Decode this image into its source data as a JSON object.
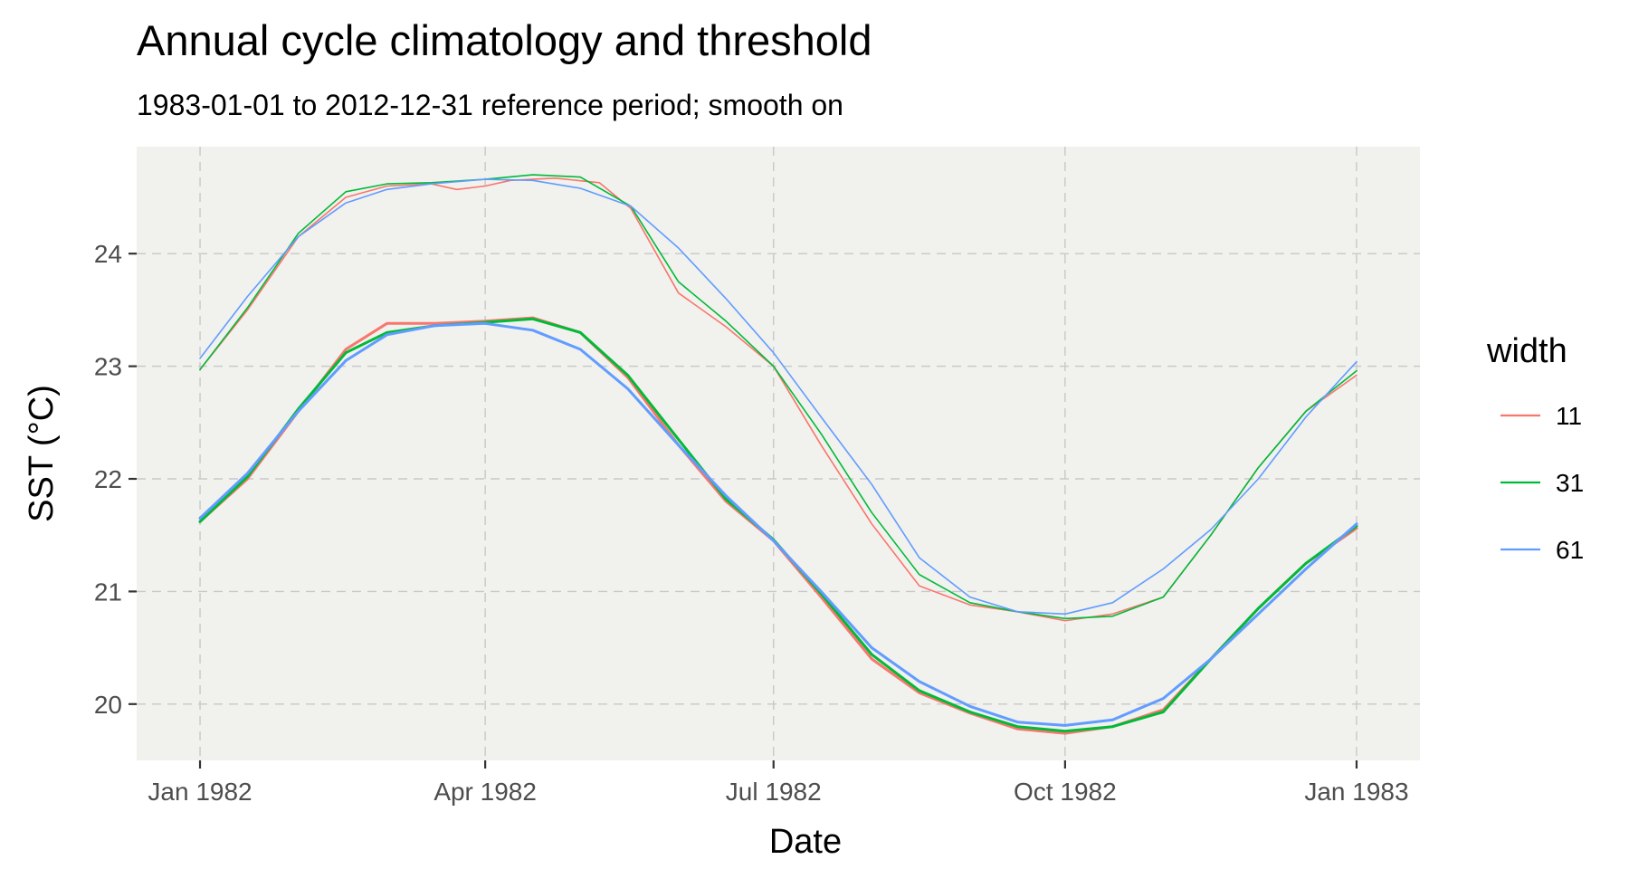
{
  "chart_data": {
    "type": "line",
    "title": "Annual cycle climatology and threshold",
    "subtitle": "1983-01-01 to 2012-12-31 reference period; smooth on",
    "xlabel": "Date",
    "ylabel": "SST (°C)",
    "legend": {
      "title": "width",
      "placement": "right"
    },
    "xlim": [
      "1981-12-12",
      "1983-01-21"
    ],
    "ylim": [
      19.5,
      24.95
    ],
    "x_ticks": [
      {
        "date": "1982-01-01",
        "label": "Jan 1982"
      },
      {
        "date": "1982-04-01",
        "label": "Apr 1982"
      },
      {
        "date": "1982-07-01",
        "label": "Jul 1982"
      },
      {
        "date": "1982-10-01",
        "label": "Oct 1982"
      },
      {
        "date": "1983-01-01",
        "label": "Jan 1983"
      }
    ],
    "y_ticks": [
      20,
      21,
      22,
      23,
      24
    ],
    "grid": true,
    "colors": {
      "11": "#F8766D",
      "31": "#00BA38",
      "61": "#619CFF",
      "panel": "#f1f1ee"
    },
    "series": [
      {
        "name": "11",
        "kind": "threshold",
        "color": "#F8766D",
        "x": [
          "1982-01-01",
          "1982-01-16",
          "1982-02-01",
          "1982-02-16",
          "1982-03-01",
          "1982-03-15",
          "1982-03-23",
          "1982-04-01",
          "1982-04-09",
          "1982-04-23",
          "1982-05-07",
          "1982-05-17",
          "1982-06-01",
          "1982-06-16",
          "1982-07-01",
          "1982-07-16",
          "1982-08-01",
          "1982-08-16",
          "1982-09-01",
          "1982-09-16",
          "1982-10-01",
          "1982-10-16",
          "1982-11-01",
          "1982-11-16",
          "1982-12-01",
          "1982-12-16",
          "1983-01-01"
        ],
        "values": [
          22.97,
          23.5,
          24.15,
          24.5,
          24.6,
          24.62,
          24.57,
          24.6,
          24.65,
          24.67,
          24.63,
          24.4,
          23.65,
          23.35,
          23.0,
          22.3,
          21.6,
          21.05,
          20.88,
          20.82,
          20.74,
          20.8,
          20.95,
          21.5,
          22.1,
          22.6,
          22.92
        ]
      },
      {
        "name": "31",
        "kind": "threshold",
        "color": "#00BA38",
        "x": [
          "1982-01-01",
          "1982-01-16",
          "1982-02-01",
          "1982-02-16",
          "1982-03-01",
          "1982-03-15",
          "1982-04-01",
          "1982-04-16",
          "1982-05-01",
          "1982-05-17",
          "1982-06-01",
          "1982-06-16",
          "1982-07-01",
          "1982-07-16",
          "1982-08-01",
          "1982-08-16",
          "1982-09-01",
          "1982-09-16",
          "1982-10-01",
          "1982-10-16",
          "1982-11-01",
          "1982-11-16",
          "1982-12-01",
          "1982-12-16",
          "1983-01-01"
        ],
        "values": [
          22.97,
          23.52,
          24.18,
          24.55,
          24.62,
          24.63,
          24.66,
          24.7,
          24.68,
          24.42,
          23.75,
          23.4,
          23.0,
          22.4,
          21.7,
          21.15,
          20.9,
          20.82,
          20.76,
          20.78,
          20.95,
          21.5,
          22.1,
          22.6,
          22.96
        ]
      },
      {
        "name": "61",
        "kind": "threshold",
        "color": "#619CFF",
        "x": [
          "1982-01-01",
          "1982-01-16",
          "1982-02-01",
          "1982-02-16",
          "1982-03-01",
          "1982-03-15",
          "1982-04-01",
          "1982-04-16",
          "1982-05-01",
          "1982-05-17",
          "1982-06-01",
          "1982-06-16",
          "1982-07-01",
          "1982-07-16",
          "1982-08-01",
          "1982-08-16",
          "1982-09-01",
          "1982-09-16",
          "1982-10-01",
          "1982-10-16",
          "1982-11-01",
          "1982-11-16",
          "1982-12-01",
          "1982-12-16",
          "1983-01-01"
        ],
        "values": [
          23.07,
          23.62,
          24.15,
          24.45,
          24.57,
          24.62,
          24.66,
          24.65,
          24.58,
          24.42,
          24.05,
          23.6,
          23.12,
          22.55,
          21.95,
          21.3,
          20.95,
          20.82,
          20.8,
          20.9,
          21.2,
          21.55,
          22.0,
          22.55,
          23.04
        ]
      },
      {
        "name": "11",
        "kind": "climatology",
        "color": "#F8766D",
        "x": [
          "1982-01-01",
          "1982-01-16",
          "1982-02-01",
          "1982-02-16",
          "1982-03-01",
          "1982-03-16",
          "1982-04-01",
          "1982-04-16",
          "1982-05-01",
          "1982-05-16",
          "1982-06-01",
          "1982-06-16",
          "1982-07-01",
          "1982-07-16",
          "1982-08-01",
          "1982-08-16",
          "1982-09-01",
          "1982-09-16",
          "1982-10-01",
          "1982-10-16",
          "1982-11-01",
          "1982-11-16",
          "1982-12-01",
          "1982-12-16",
          "1983-01-01"
        ],
        "values": [
          21.62,
          22.0,
          22.6,
          23.15,
          23.38,
          23.38,
          23.4,
          23.43,
          23.3,
          22.9,
          22.3,
          21.8,
          21.45,
          20.95,
          20.4,
          20.1,
          19.92,
          19.78,
          19.74,
          19.8,
          19.95,
          20.4,
          20.85,
          21.25,
          21.56
        ]
      },
      {
        "name": "31",
        "kind": "climatology",
        "color": "#00BA38",
        "x": [
          "1982-01-01",
          "1982-01-16",
          "1982-02-01",
          "1982-02-16",
          "1982-03-01",
          "1982-03-16",
          "1982-04-01",
          "1982-04-16",
          "1982-05-01",
          "1982-05-16",
          "1982-06-01",
          "1982-06-16",
          "1982-07-01",
          "1982-07-16",
          "1982-08-01",
          "1982-08-16",
          "1982-09-01",
          "1982-09-16",
          "1982-10-01",
          "1982-10-16",
          "1982-11-01",
          "1982-11-16",
          "1982-12-01",
          "1982-12-16",
          "1983-01-01"
        ],
        "values": [
          21.62,
          22.02,
          22.62,
          23.12,
          23.3,
          23.36,
          23.39,
          23.42,
          23.3,
          22.92,
          22.35,
          21.82,
          21.46,
          20.98,
          20.44,
          20.12,
          19.93,
          19.8,
          19.76,
          19.8,
          19.93,
          20.4,
          20.85,
          21.25,
          21.58
        ]
      },
      {
        "name": "61",
        "kind": "climatology",
        "color": "#619CFF",
        "x": [
          "1982-01-01",
          "1982-01-16",
          "1982-02-01",
          "1982-02-16",
          "1982-03-01",
          "1982-03-16",
          "1982-04-01",
          "1982-04-16",
          "1982-05-01",
          "1982-05-16",
          "1982-06-01",
          "1982-06-16",
          "1982-07-01",
          "1982-07-16",
          "1982-08-01",
          "1982-08-16",
          "1982-09-01",
          "1982-09-16",
          "1982-10-01",
          "1982-10-16",
          "1982-11-01",
          "1982-11-16",
          "1982-12-01",
          "1982-12-16",
          "1983-01-01"
        ],
        "values": [
          21.65,
          22.05,
          22.6,
          23.05,
          23.28,
          23.36,
          23.38,
          23.32,
          23.15,
          22.8,
          22.3,
          21.85,
          21.45,
          21.0,
          20.5,
          20.2,
          19.98,
          19.84,
          19.81,
          19.86,
          20.05,
          20.4,
          20.8,
          21.2,
          21.6
        ]
      }
    ]
  }
}
